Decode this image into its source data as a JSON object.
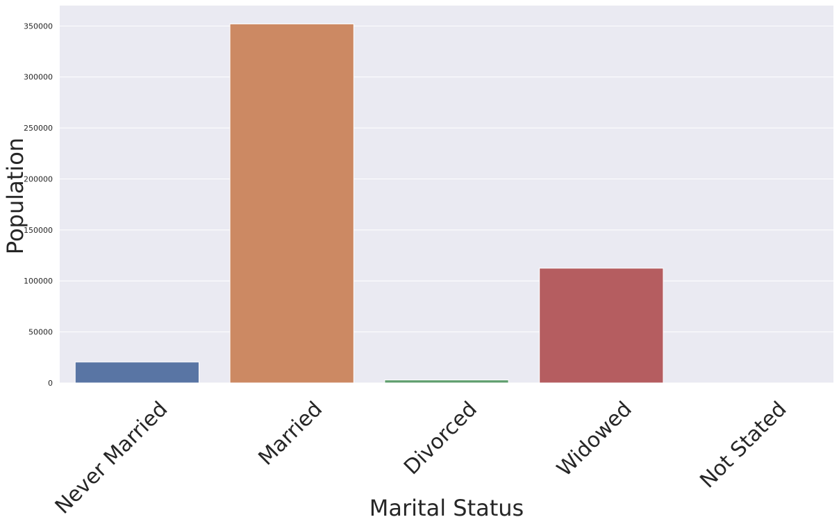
{
  "chart_data": {
    "type": "bar",
    "title": "",
    "xlabel": "Marital Status",
    "ylabel": "Population",
    "categories": [
      "Never Married",
      "Married",
      "Divorced",
      "Widowed",
      "Not Stated"
    ],
    "values": [
      20500,
      352000,
      2900,
      112500,
      0
    ],
    "ylim": [
      0,
      370000
    ],
    "yticks": [
      0,
      50000,
      100000,
      150000,
      200000,
      250000,
      300000,
      350000
    ],
    "ytick_labels": [
      "0",
      "50000",
      "100000",
      "150000",
      "200000",
      "250000",
      "300000",
      "350000"
    ],
    "colors": [
      "#5975a4",
      "#cc8963",
      "#5f9e6e",
      "#b55d60",
      "#857aab"
    ],
    "background": "#eaeaf2",
    "grid_color": "#ffffff",
    "grid": true,
    "legend": "none"
  }
}
